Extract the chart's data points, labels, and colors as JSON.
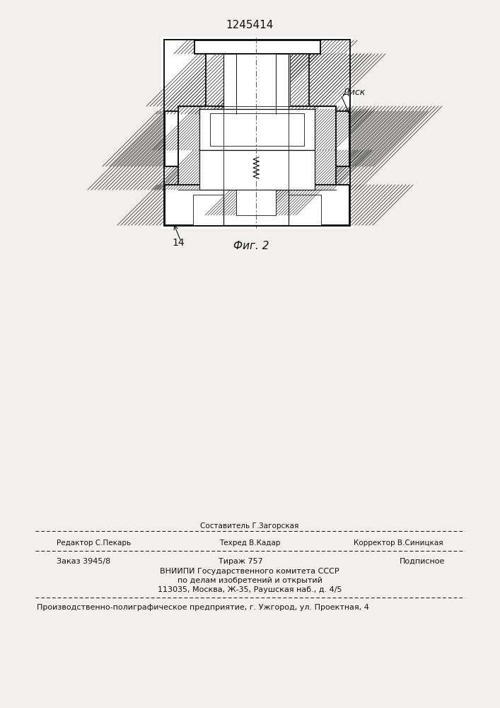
{
  "patent_number": "1245414",
  "fig_label": "Фиг. 2",
  "label_14": "14",
  "label_disk": "Диск",
  "footer_line0_center": "Составитель Г.Загорская",
  "footer_line1_left": "Редактор С.Пекарь",
  "footer_line1_center": "Техред В.Кадар",
  "footer_line1_right": "Корректор В.Синицкая",
  "footer_line2_left": "Заказ 3945/8",
  "footer_line2_center": "Тираж 757",
  "footer_line2_right": "Подписное",
  "footer_line3": "ВНИИПИ Государственного комитета СССР",
  "footer_line4": "по делам изобретений и открытий",
  "footer_line5": "113035, Москва, Ж-35, Раушская наб., д. 4/5",
  "footer_line6": "Производственно-полиграфическое предприятие, г. Ужгород, ул. Проектная, 4",
  "bg_color": "#f2f0ec",
  "line_color": "#111111"
}
